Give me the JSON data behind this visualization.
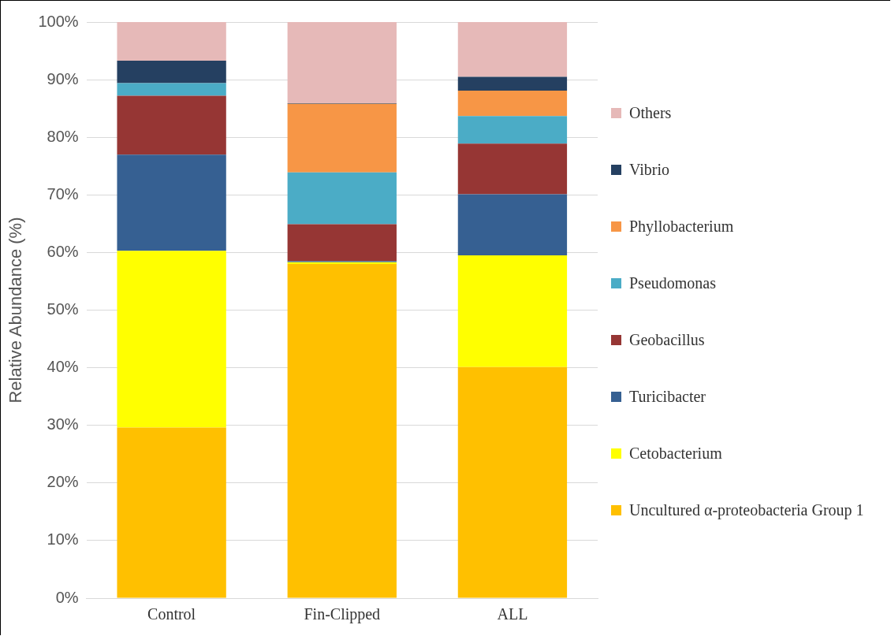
{
  "chart_data": {
    "type": "bar",
    "stacked": true,
    "ylabel": "Relative Abundance (%)",
    "categories": [
      "Control",
      "Fin-Clipped",
      "ALL"
    ],
    "ylim": [
      0,
      100
    ],
    "yticks": [
      {
        "value": 0,
        "label": "0%"
      },
      {
        "value": 10,
        "label": "10%"
      },
      {
        "value": 20,
        "label": "20%"
      },
      {
        "value": 30,
        "label": "30%"
      },
      {
        "value": 40,
        "label": "40%"
      },
      {
        "value": 50,
        "label": "50%"
      },
      {
        "value": 60,
        "label": "60%"
      },
      {
        "value": 70,
        "label": "70%"
      },
      {
        "value": 80,
        "label": "80%"
      },
      {
        "value": 90,
        "label": "90%"
      },
      {
        "value": 100,
        "label": "100%"
      }
    ],
    "grid": "y",
    "legend": "right",
    "series": [
      {
        "name": "Uncultured α-proteobacteria Group 1",
        "color": "#ffc000",
        "values": [
          29.6,
          58.0,
          40.1
        ]
      },
      {
        "name": "Cetobacterium",
        "color": "#ffff00",
        "values": [
          30.7,
          0.3,
          19.4
        ]
      },
      {
        "name": "Turicibacter",
        "color": "#366092",
        "values": [
          16.7,
          0.2,
          10.6
        ]
      },
      {
        "name": "Geobacillus",
        "color": "#963634",
        "values": [
          10.2,
          6.4,
          8.8
        ]
      },
      {
        "name": "Pseudomonas",
        "color": "#4bacc6",
        "values": [
          2.2,
          9.0,
          4.8
        ]
      },
      {
        "name": "Phyllobacterium",
        "color": "#f79646",
        "values": [
          0,
          11.9,
          4.4
        ]
      },
      {
        "name": "Vibrio",
        "color": "#254061",
        "values": [
          3.9,
          0.1,
          2.4
        ]
      },
      {
        "name": "Others",
        "color": "#e6b9b8",
        "values": [
          6.7,
          14.2,
          9.5
        ]
      }
    ]
  }
}
